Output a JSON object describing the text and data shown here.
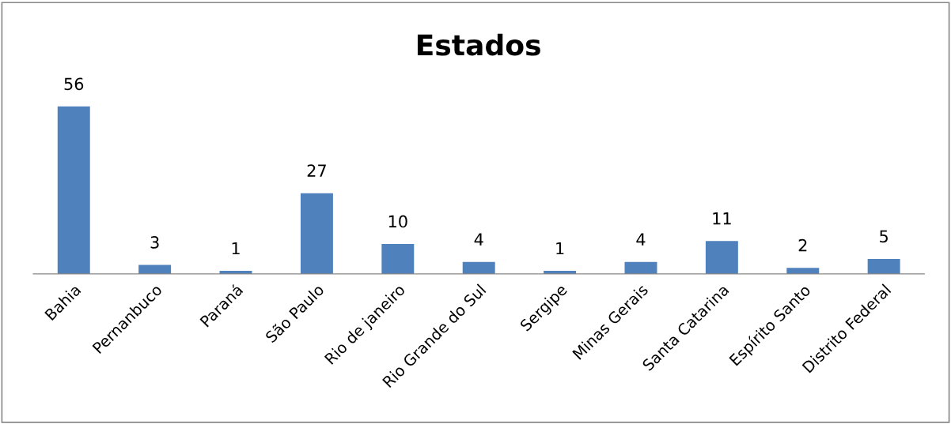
{
  "chart_data": {
    "type": "bar",
    "title": "Estados",
    "categories": [
      "Bahia",
      "Pernanbuco",
      "Paraná",
      "São Paulo",
      "Rio de janeiro",
      "Rio Grande do Sul",
      "Sergipe",
      "Minas Gerais",
      "Santa Catarina",
      "Espírito Santo",
      "Distrito Federal"
    ],
    "values": [
      56,
      3,
      1,
      27,
      10,
      4,
      1,
      4,
      11,
      2,
      5
    ],
    "color": "#4f81bd",
    "data_labels": true,
    "grid": false,
    "legend": false
  }
}
